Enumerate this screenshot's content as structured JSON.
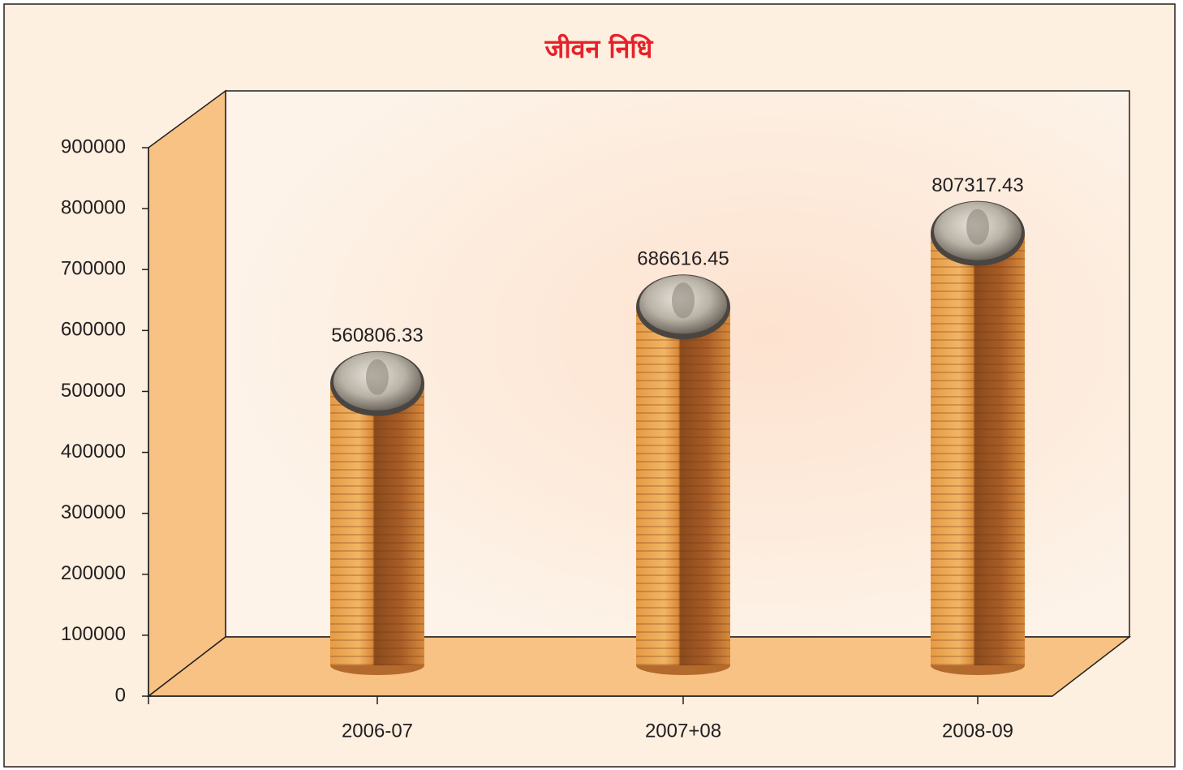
{
  "chart_data": {
    "type": "bar",
    "title": "जीवन निधि",
    "categories": [
      "2006-07",
      "2007+08",
      "2008-09"
    ],
    "values": [
      560806.33,
      686616.45,
      807317.43
    ],
    "color": "#c9782e",
    "ylim": [
      0,
      900000
    ],
    "yticks": [
      0,
      100000,
      200000,
      300000,
      400000,
      500000,
      600000,
      700000,
      800000,
      900000
    ]
  }
}
